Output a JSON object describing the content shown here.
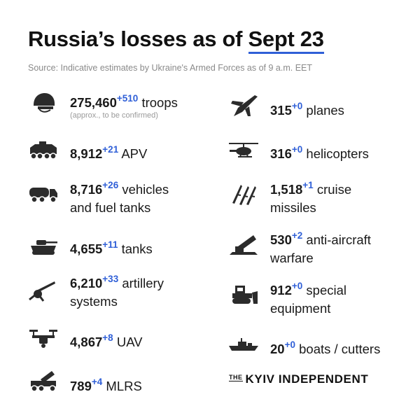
{
  "header": {
    "title_prefix": "Russia’s losses",
    "title_middle": "as of",
    "title_date": "Sept 23",
    "source": "Source: Indicative estimates by Ukraine's Armed Forces as of 9 a.m. EET"
  },
  "left": [
    {
      "value": "275,460",
      "delta": "+510",
      "label": "troops",
      "note": "(approx., to be confirmed)",
      "icon": "soldier-helmet-icon"
    },
    {
      "value": "8,912",
      "delta": "+21",
      "label": "APV",
      "icon": "armored-vehicle-icon"
    },
    {
      "value": "8,716",
      "delta": "+26",
      "label_line1": "vehicles",
      "label_line2": "and fuel tanks",
      "icon": "fuel-truck-icon"
    },
    {
      "value": "4,655",
      "delta": "+11",
      "label": "tanks",
      "icon": "tank-icon"
    },
    {
      "value": "6,210",
      "delta": "+33",
      "label_line1": "artillery",
      "label_line2": "systems",
      "icon": "artillery-icon"
    },
    {
      "value": "4,867",
      "delta": "+8",
      "label": "UAV",
      "icon": "drone-icon"
    },
    {
      "value": "789",
      "delta": "+4",
      "label": "MLRS",
      "icon": "mlrs-icon"
    }
  ],
  "right": [
    {
      "value": "315",
      "delta": "+0",
      "label": "planes",
      "icon": "jet-plane-icon"
    },
    {
      "value": "316",
      "delta": "+0",
      "label": "helicopters",
      "icon": "helicopter-icon"
    },
    {
      "value": "1,518",
      "delta": "+1",
      "label_line1": "cruise",
      "label_line2": "missiles",
      "icon": "cruise-missiles-icon"
    },
    {
      "value": "530",
      "delta": "+2",
      "label_line1": "anti-aircraft",
      "label_line2": "warfare",
      "icon": "anti-aircraft-icon"
    },
    {
      "value": "912",
      "delta": "+0",
      "label_line1": "special",
      "label_line2": "equipment",
      "icon": "bulldozer-icon"
    },
    {
      "value": "20",
      "delta": "+0",
      "label": "boats / cutters",
      "icon": "warship-icon"
    }
  ],
  "brand": {
    "the": "THE",
    "name": "KYIV INDEPENDENT"
  },
  "colors": {
    "accent": "#2f5fd7",
    "icon": "#2b2b2b",
    "text": "#1a1a1a",
    "muted": "#8a8a8a"
  }
}
